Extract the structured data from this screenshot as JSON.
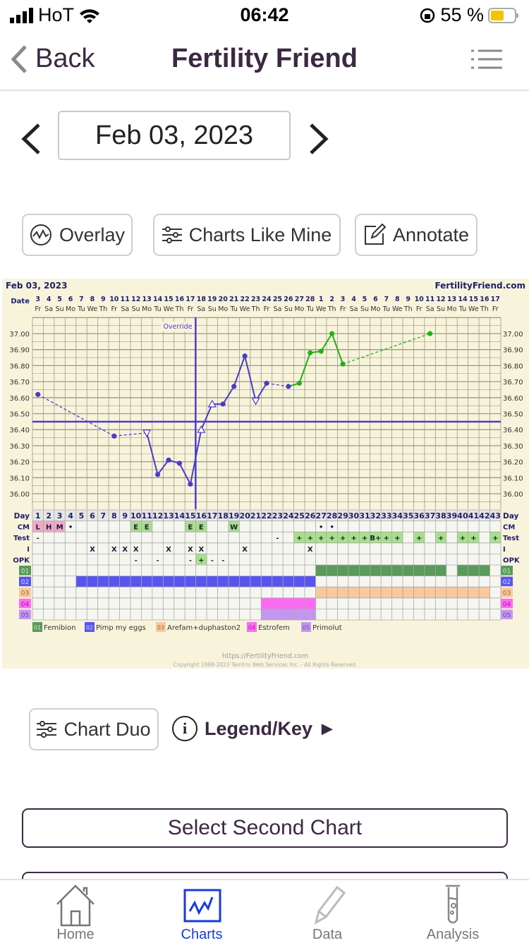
{
  "status_bar": {
    "carrier": "HoT",
    "time": "06:42",
    "battery": "55 %",
    "battery_color": "#f5c400"
  },
  "nav": {
    "back_label": "Back",
    "title": "Fertility Friend"
  },
  "date_picker": {
    "value": "Feb 03, 2023"
  },
  "actions": {
    "overlay": "Overlay",
    "charts_like_mine": "Charts Like Mine",
    "annotate": "Annotate"
  },
  "chart": {
    "date_title": "Feb 03, 2023",
    "site": "FertilityFriend.com",
    "date_label": "Date",
    "day_label": "Day",
    "override_label": "Override",
    "footer_url": "https://FertilityFriend.com",
    "footer_copyright": "Copyright 1998-2023 Tamtris Web Services Inc. - All Rights Reserved.",
    "dates": [
      "3",
      "4",
      "5",
      "6",
      "7",
      "8",
      "9",
      "10",
      "11",
      "12",
      "13",
      "14",
      "15",
      "16",
      "17",
      "18",
      "19",
      "20",
      "21",
      "22",
      "23",
      "24",
      "25",
      "26",
      "27",
      "28",
      "1",
      "2",
      "3",
      "4",
      "5",
      "6",
      "7",
      "8",
      "9",
      "10",
      "11",
      "12",
      "13",
      "14",
      "15",
      "16",
      "17"
    ],
    "weekdays": [
      "Fr",
      "Sa",
      "Su",
      "Mo",
      "Tu",
      "We",
      "Th"
    ],
    "ytick_labels": [
      "37.00",
      "36.90",
      "36.80",
      "36.70",
      "36.60",
      "36.50",
      "36.40",
      "36.30",
      "36.20",
      "36.10",
      "36.00"
    ],
    "coverline": 36.45,
    "override_day": 16,
    "colors": {
      "pre": "#4a3cc8",
      "post": "#22b014",
      "bg": "#f8f4dc",
      "grid": "#9a9a86",
      "green_cell": "#a8e08a",
      "pink_cell": "#f2a9c8"
    },
    "temps": [
      {
        "day": 1,
        "t": 36.62,
        "m": "dot"
      },
      {
        "day": 8,
        "t": 36.36,
        "m": "dot"
      },
      {
        "day": 11,
        "t": 36.38,
        "m": "tri-down"
      },
      {
        "day": 12,
        "t": 36.12,
        "m": "dot"
      },
      {
        "day": 13,
        "t": 36.21,
        "m": "dot"
      },
      {
        "day": 14,
        "t": 36.19,
        "m": "dot"
      },
      {
        "day": 15,
        "t": 36.06,
        "m": "dot"
      },
      {
        "day": 16,
        "t": 36.4,
        "m": "tri-up"
      },
      {
        "day": 17,
        "t": 36.56,
        "m": "tri-up"
      },
      {
        "day": 18,
        "t": 36.56,
        "m": "dot"
      },
      {
        "day": 19,
        "t": 36.67,
        "m": "dot"
      },
      {
        "day": 20,
        "t": 36.86,
        "m": "dot"
      },
      {
        "day": 21,
        "t": 36.58,
        "m": "tri-down"
      },
      {
        "day": 22,
        "t": 36.69,
        "m": "dot"
      },
      {
        "day": 24,
        "t": 36.67,
        "m": "dot"
      },
      {
        "day": 25,
        "t": 36.69,
        "m": "dot",
        "post": true
      },
      {
        "day": 26,
        "t": 36.88,
        "m": "dot",
        "post": true
      },
      {
        "day": 27,
        "t": 36.89,
        "m": "dot",
        "post": true
      },
      {
        "day": 28,
        "t": 37.0,
        "m": "dot",
        "post": true
      },
      {
        "day": 29,
        "t": 36.81,
        "m": "dot",
        "post": true
      },
      {
        "day": 37,
        "t": 37.0,
        "m": "dot",
        "post": true
      }
    ],
    "rows": [
      {
        "label": "CM",
        "cells": [
          {
            "d": 1,
            "v": "L",
            "bg": "pink"
          },
          {
            "d": 2,
            "v": "H",
            "bg": "pink"
          },
          {
            "d": 3,
            "v": "M",
            "bg": "pink"
          },
          {
            "d": 4,
            "v": "•"
          },
          {
            "d": 10,
            "v": "E",
            "bg": "green"
          },
          {
            "d": 11,
            "v": "E",
            "bg": "green"
          },
          {
            "d": 15,
            "v": "E",
            "bg": "green"
          },
          {
            "d": 16,
            "v": "E",
            "bg": "green"
          },
          {
            "d": 19,
            "v": "W",
            "bg": "green"
          },
          {
            "d": 27,
            "v": "•"
          },
          {
            "d": 28,
            "v": "•"
          }
        ]
      },
      {
        "label": "Test",
        "cells": [
          {
            "d": 1,
            "v": "-"
          },
          {
            "d": 23,
            "v": "-"
          },
          {
            "d": 25,
            "v": "+",
            "bg": "green"
          },
          {
            "d": 26,
            "v": "+",
            "bg": "green"
          },
          {
            "d": 27,
            "v": "+",
            "bg": "green"
          },
          {
            "d": 28,
            "v": "+",
            "bg": "green"
          },
          {
            "d": 29,
            "v": "+",
            "bg": "green"
          },
          {
            "d": 30,
            "v": "+",
            "bg": "green"
          },
          {
            "d": 31,
            "v": "+",
            "bg": "green"
          },
          {
            "d": 32,
            "v": "B+",
            "bg": "green"
          },
          {
            "d": 33,
            "v": "+",
            "bg": "green"
          },
          {
            "d": 34,
            "v": "+",
            "bg": "green"
          },
          {
            "d": 36,
            "v": "+",
            "bg": "green"
          },
          {
            "d": 38,
            "v": "+",
            "bg": "green"
          },
          {
            "d": 40,
            "v": "+",
            "bg": "green"
          },
          {
            "d": 41,
            "v": "+",
            "bg": "green"
          },
          {
            "d": 43,
            "v": "+",
            "bg": "green"
          }
        ]
      },
      {
        "label": "I",
        "cells": [
          {
            "d": 6,
            "v": "X"
          },
          {
            "d": 8,
            "v": "X"
          },
          {
            "d": 9,
            "v": "X"
          },
          {
            "d": 10,
            "v": "X"
          },
          {
            "d": 13,
            "v": "X"
          },
          {
            "d": 15,
            "v": "X"
          },
          {
            "d": 16,
            "v": "X"
          },
          {
            "d": 20,
            "v": "X"
          },
          {
            "d": 26,
            "v": "X"
          }
        ]
      },
      {
        "label": "OPK",
        "cells": [
          {
            "d": 10,
            "v": "-"
          },
          {
            "d": 12,
            "v": "-"
          },
          {
            "d": 15,
            "v": "-"
          },
          {
            "d": 16,
            "v": "+",
            "bg": "green"
          },
          {
            "d": 17,
            "v": "-"
          },
          {
            "d": 18,
            "v": "-"
          }
        ]
      }
    ],
    "meds": [
      {
        "code": "01",
        "name": "Femibion",
        "color": "#5a9a5a",
        "code_color": "#cfe8cf",
        "days": [
          27,
          28,
          29,
          30,
          31,
          32,
          33,
          34,
          35,
          36,
          37,
          38,
          40,
          41,
          42
        ]
      },
      {
        "code": "02",
        "name": "Pimp my eggs",
        "color": "#5656ee",
        "code_color": "#d6d6ff",
        "days": [
          5,
          6,
          7,
          8,
          9,
          10,
          11,
          12,
          13,
          14,
          15,
          16,
          17,
          18,
          19,
          20,
          21,
          22,
          23,
          24,
          25,
          26
        ]
      },
      {
        "code": "03",
        "name": "Arefam+duphaston2",
        "color": "#f8c99c",
        "code_color": "#a0603a",
        "days": [
          27,
          28,
          29,
          30,
          31,
          32,
          33,
          34,
          35,
          36,
          37,
          38,
          39,
          40,
          41,
          42
        ]
      },
      {
        "code": "04",
        "name": "Estrofem",
        "color": "#ff6af5",
        "code_color": "#a02090",
        "days": [
          22,
          23,
          24,
          25,
          26
        ]
      },
      {
        "code": "05",
        "name": "Primolut",
        "color": "#c496f2",
        "code_color": "#6a4a9a",
        "days": [
          22,
          23,
          24,
          25,
          26
        ]
      }
    ]
  },
  "chart_duo": {
    "label": "Chart Duo"
  },
  "legend_key": {
    "label": "Legend/Key ►",
    "icon_letter": "i"
  },
  "select_second": {
    "label": "Select Second Chart"
  },
  "tabs": [
    {
      "label": "Home"
    },
    {
      "label": "Charts",
      "active": true
    },
    {
      "label": "Data"
    },
    {
      "label": "Analysis"
    }
  ],
  "accent": "#1a3ae0"
}
